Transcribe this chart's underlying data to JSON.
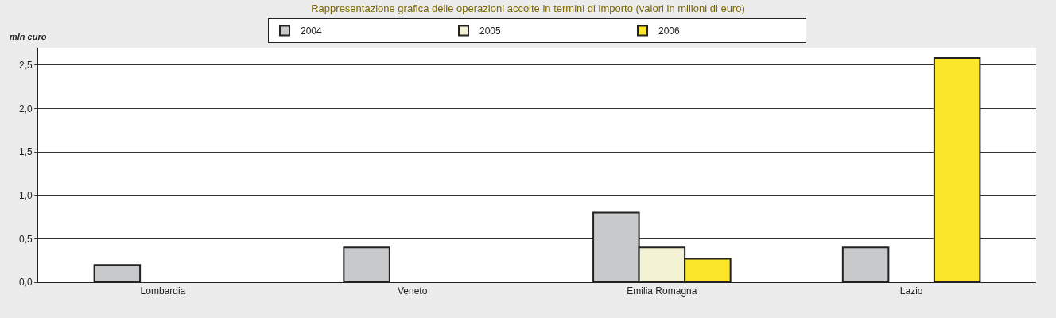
{
  "chart_data": {
    "type": "bar",
    "title": "Rappresentazione grafica delle operazioni accolte in termini di importo (valori in milioni di euro)",
    "ylabel": "mln euro",
    "categories": [
      "Lombardia",
      "Veneto",
      "Emilia Romagna",
      "Lazio"
    ],
    "series": [
      {
        "name": "2004",
        "color": "#c8c9cb",
        "values": [
          0.2,
          0.4,
          0.8,
          0.4
        ]
      },
      {
        "name": "2005",
        "color": "#f4f2d4",
        "values": [
          null,
          null,
          0.4,
          null
        ]
      },
      {
        "name": "2006",
        "color": "#fbe62a",
        "values": [
          null,
          null,
          0.27,
          2.58
        ]
      }
    ],
    "ylim": [
      0,
      2.7
    ],
    "yticks": [
      {
        "value": 0,
        "label": "0,0"
      },
      {
        "value": 0.5,
        "label": "0,5"
      },
      {
        "value": 1,
        "label": "1,0"
      },
      {
        "value": 1.5,
        "label": "1,5"
      },
      {
        "value": 2,
        "label": "2,0"
      },
      {
        "value": 2.5,
        "label": "2,5"
      }
    ],
    "grid": "y",
    "legend": "top"
  }
}
